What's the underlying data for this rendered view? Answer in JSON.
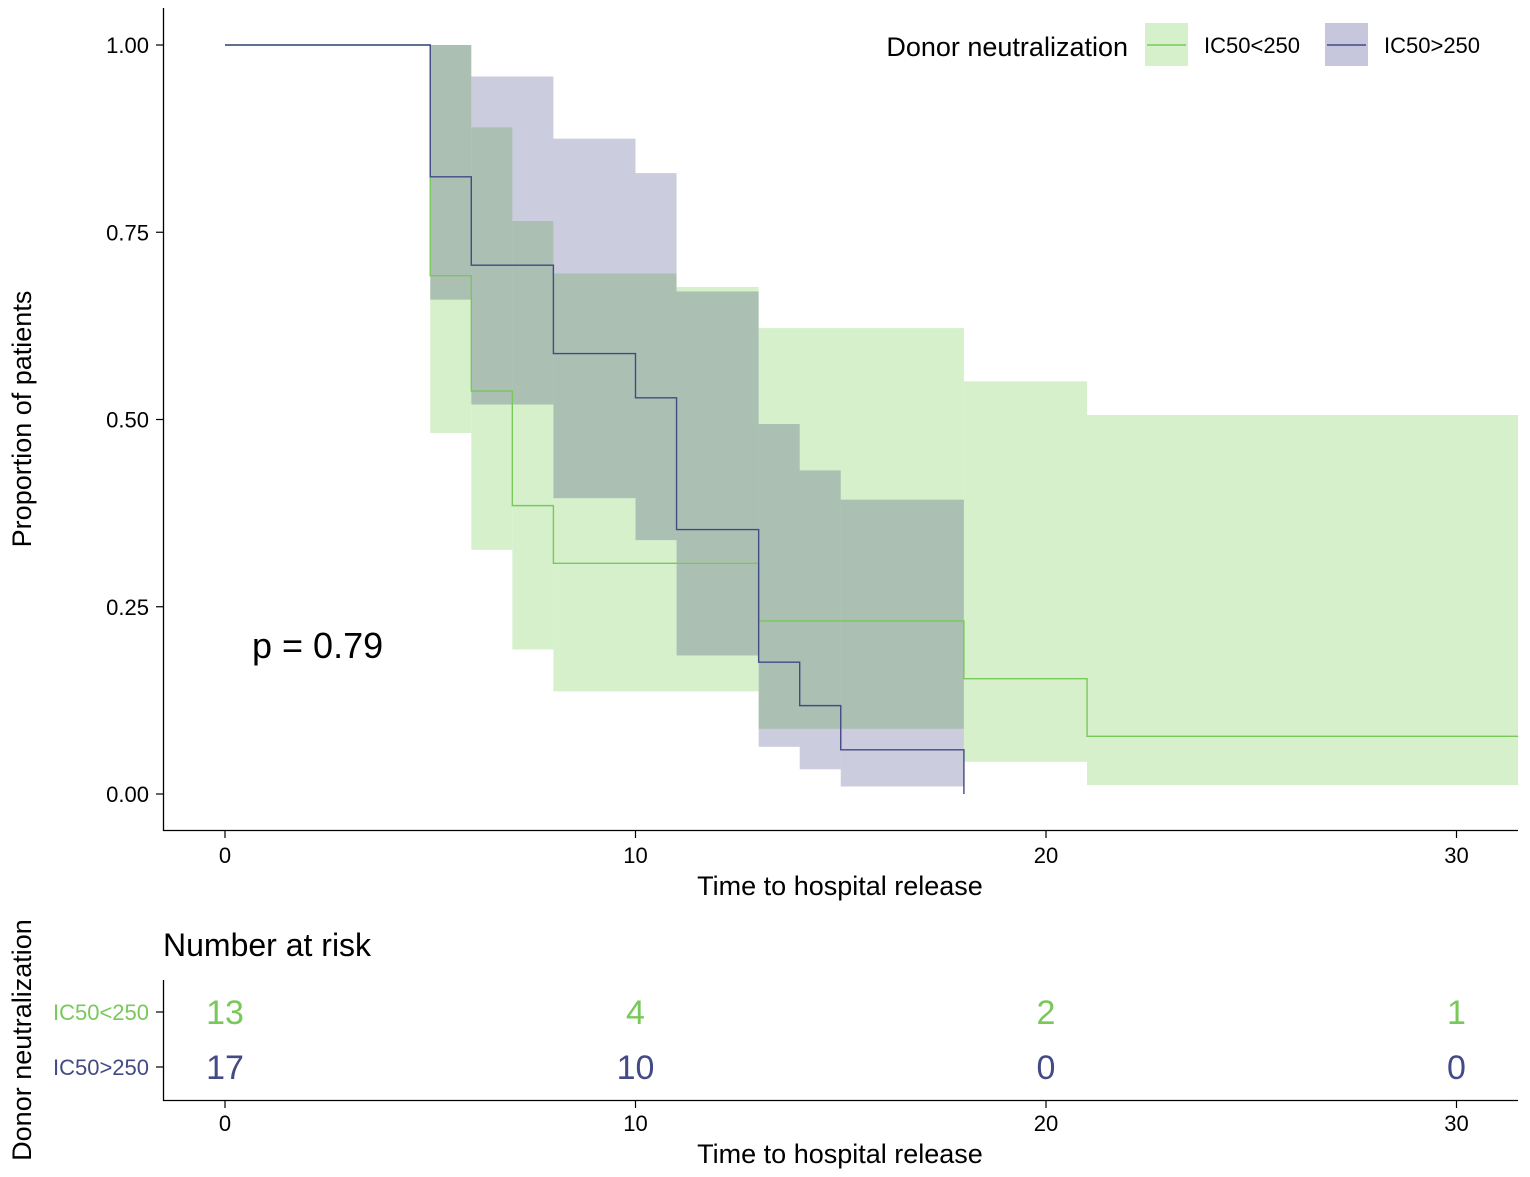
{
  "chart_data": [
    {
      "type": "line",
      "subtype": "kaplan-meier",
      "title": "",
      "xlabel": "Time to hospital release",
      "ylabel": "Proportion of patients",
      "xlim": [
        -1.5,
        31.5
      ],
      "ylim": [
        -0.05,
        1.05
      ],
      "x_ticks": [
        0,
        10,
        20,
        30
      ],
      "y_ticks": [
        0.0,
        0.25,
        0.5,
        0.75,
        1.0
      ],
      "y_tick_labels": [
        "0.00",
        "0.25",
        "0.50",
        "0.75",
        "1.00"
      ],
      "grid": false,
      "legend": {
        "title": "Donor neutralization",
        "position": "top-right",
        "items": [
          "IC50<250",
          "IC50>250"
        ]
      },
      "annotation": "p = 0.79",
      "series": [
        {
          "name": "IC50<250",
          "color": "#78c85a",
          "fill": "#d6f0cc",
          "steps": [
            {
              "x": 0,
              "y": 1.0
            },
            {
              "x": 5,
              "y": 0.692
            },
            {
              "x": 6,
              "y": 0.538
            },
            {
              "x": 7,
              "y": 0.385
            },
            {
              "x": 8,
              "y": 0.308
            },
            {
              "x": 13,
              "y": 0.231
            },
            {
              "x": 18,
              "y": 0.154
            },
            {
              "x": 21,
              "y": 0.077
            }
          ],
          "end_x": 31.5,
          "ci": [
            {
              "x": 5,
              "lower": 0.482,
              "upper": 1.0
            },
            {
              "x": 6,
              "lower": 0.326,
              "upper": 0.89
            },
            {
              "x": 7,
              "lower": 0.193,
              "upper": 0.765
            },
            {
              "x": 8,
              "lower": 0.137,
              "upper": 0.695
            },
            {
              "x": 11,
              "lower": 0.137,
              "upper": 0.677
            },
            {
              "x": 13,
              "lower": 0.087,
              "upper": 0.622
            },
            {
              "x": 18,
              "lower": 0.043,
              "upper": 0.551
            },
            {
              "x": 21,
              "lower": 0.012,
              "upper": 0.506
            }
          ]
        },
        {
          "name": "IC50>250",
          "color": "#434a85",
          "fill": "#c6c6dc",
          "steps": [
            {
              "x": 0,
              "y": 1.0
            },
            {
              "x": 5,
              "y": 0.824
            },
            {
              "x": 6,
              "y": 0.706
            },
            {
              "x": 8,
              "y": 0.588
            },
            {
              "x": 10,
              "y": 0.529
            },
            {
              "x": 11,
              "y": 0.353
            },
            {
              "x": 13,
              "y": 0.176
            },
            {
              "x": 14,
              "y": 0.118
            },
            {
              "x": 15,
              "y": 0.059
            },
            {
              "x": 18,
              "y": 0.0
            }
          ],
          "end_x": 18,
          "ci": [
            {
              "x": 5,
              "lower": 0.66,
              "upper": 1.0
            },
            {
              "x": 6,
              "lower": 0.52,
              "upper": 0.958
            },
            {
              "x": 8,
              "lower": 0.395,
              "upper": 0.875
            },
            {
              "x": 10,
              "lower": 0.339,
              "upper": 0.829
            },
            {
              "x": 11,
              "lower": 0.185,
              "upper": 0.671
            },
            {
              "x": 13,
              "lower": 0.063,
              "upper": 0.494
            },
            {
              "x": 14,
              "lower": 0.033,
              "upper": 0.432
            },
            {
              "x": 15,
              "lower": 0.01,
              "upper": 0.393
            }
          ],
          "ci_end_x": 18
        }
      ]
    },
    {
      "type": "table",
      "title": "Number at risk",
      "xlabel": "Time to hospital release",
      "ylabel": "Donor neutralization",
      "x_ticks": [
        0,
        10,
        20,
        30
      ],
      "rows": [
        {
          "name": "IC50<250",
          "color": "#78c85a",
          "values": [
            13,
            4,
            2,
            1
          ]
        },
        {
          "name": "IC50>250",
          "color": "#434a85",
          "values": [
            17,
            10,
            0,
            0
          ]
        }
      ]
    }
  ]
}
